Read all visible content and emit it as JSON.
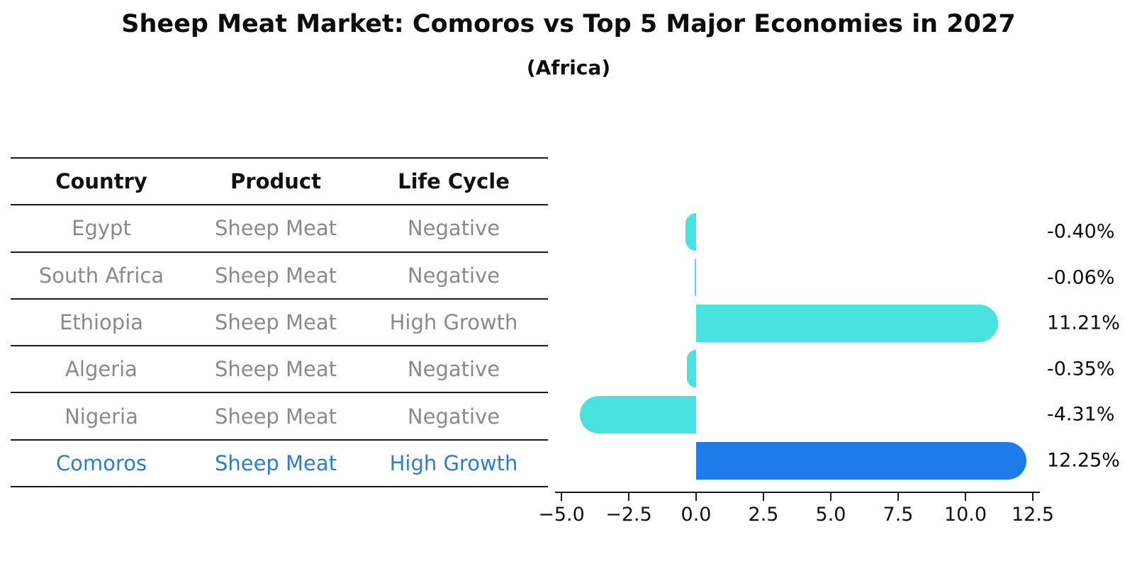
{
  "title": "Sheep Meat Market: Comoros vs Top 5 Major Economies in 2027",
  "subtitle": "(Africa)",
  "table": {
    "headers": [
      "Country",
      "Product",
      "Life Cycle"
    ],
    "rows": [
      {
        "country": "Egypt",
        "product": "Sheep Meat",
        "life_cycle": "Negative",
        "highlight": false
      },
      {
        "country": "South Africa",
        "product": "Sheep Meat",
        "life_cycle": "Negative",
        "highlight": false
      },
      {
        "country": "Ethiopia",
        "product": "Sheep Meat",
        "life_cycle": "High Growth",
        "highlight": false
      },
      {
        "country": "Algeria",
        "product": "Sheep Meat",
        "life_cycle": "Negative",
        "highlight": false
      },
      {
        "country": "Nigeria",
        "product": "Sheep Meat",
        "life_cycle": "Negative",
        "highlight": false
      },
      {
        "country": "Comoros",
        "product": "Sheep Meat",
        "life_cycle": "High Growth",
        "highlight": true
      }
    ]
  },
  "chart_data": {
    "type": "bar",
    "orientation": "horizontal",
    "categories": [
      "Egypt",
      "South Africa",
      "Ethiopia",
      "Algeria",
      "Nigeria",
      "Comoros"
    ],
    "values": [
      -0.4,
      -0.06,
      11.21,
      -0.35,
      -4.31,
      12.25
    ],
    "value_labels": [
      "-0.40%",
      "-0.06%",
      "11.21%",
      "-0.35%",
      "-4.31%",
      "12.25%"
    ],
    "highlight_category": "Comoros",
    "x_ticks": [
      -5.0,
      -2.5,
      0.0,
      2.5,
      5.0,
      7.5,
      10.0,
      12.5
    ],
    "x_tick_labels": [
      "−5.0",
      "−2.5",
      "0.0",
      "2.5",
      "5.0",
      "7.5",
      "10.0",
      "12.5"
    ],
    "xlim": [
      -5.25,
      12.75
    ],
    "grid": false,
    "legend": null,
    "title": "Sheep Meat Market: Comoros vs Top 5 Major Economies in 2027",
    "subtitle": "(Africa)",
    "xlabel": "",
    "ylabel": "",
    "colors": {
      "bar_default": "#4ae2df",
      "bar_highlight": "#1e7ce8",
      "text_highlight": "#2e7dcc",
      "text_muted": "#8a8a8a",
      "axis": "#1a1a1a"
    }
  }
}
